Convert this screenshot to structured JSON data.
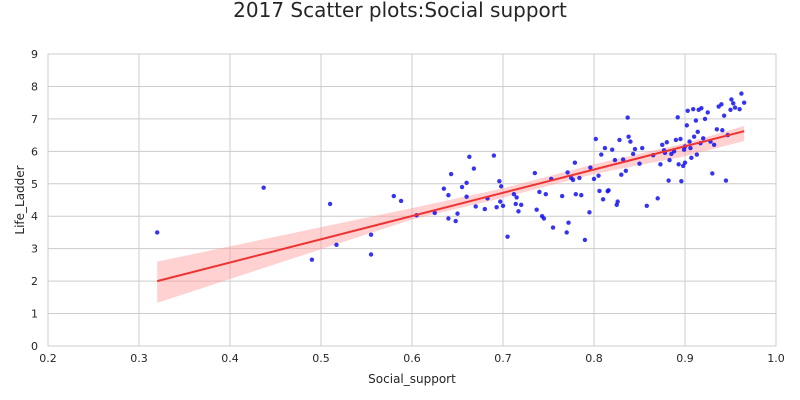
{
  "chart_data": {
    "type": "scatter",
    "title": "2017 Scatter plots:Social support",
    "xlabel": "Social_support",
    "ylabel": "Life_Ladder",
    "xlim": [
      0.2,
      1.0
    ],
    "ylim": [
      0,
      9
    ],
    "x_ticks": [
      "0.2",
      "0.3",
      "0.4",
      "0.5",
      "0.6",
      "0.7",
      "0.8",
      "0.9",
      "1.0"
    ],
    "y_ticks": [
      "0",
      "1",
      "2",
      "3",
      "4",
      "5",
      "6",
      "7",
      "8",
      "9"
    ],
    "grid": true,
    "point_color": "#1010f0",
    "fit_color": "#ee3333",
    "ci_color": "#ff9999",
    "points": [
      [
        0.32,
        3.5
      ],
      [
        0.437,
        4.88
      ],
      [
        0.49,
        2.66
      ],
      [
        0.51,
        4.38
      ],
      [
        0.517,
        3.12
      ],
      [
        0.555,
        2.82
      ],
      [
        0.555,
        3.43
      ],
      [
        0.58,
        4.62
      ],
      [
        0.588,
        4.47
      ],
      [
        0.605,
        4.03
      ],
      [
        0.625,
        4.1
      ],
      [
        0.635,
        4.85
      ],
      [
        0.64,
        4.65
      ],
      [
        0.64,
        3.93
      ],
      [
        0.643,
        5.3
      ],
      [
        0.648,
        3.85
      ],
      [
        0.65,
        4.08
      ],
      [
        0.655,
        4.9
      ],
      [
        0.66,
        5.03
      ],
      [
        0.66,
        4.6
      ],
      [
        0.663,
        5.83
      ],
      [
        0.668,
        5.47
      ],
      [
        0.67,
        4.3
      ],
      [
        0.68,
        4.22
      ],
      [
        0.683,
        4.55
      ],
      [
        0.69,
        5.87
      ],
      [
        0.693,
        4.28
      ],
      [
        0.696,
        5.08
      ],
      [
        0.697,
        4.45
      ],
      [
        0.698,
        4.92
      ],
      [
        0.7,
        4.32
      ],
      [
        0.705,
        3.37
      ],
      [
        0.712,
        4.68
      ],
      [
        0.714,
        4.38
      ],
      [
        0.715,
        4.58
      ],
      [
        0.717,
        4.15
      ],
      [
        0.72,
        4.35
      ],
      [
        0.735,
        5.33
      ],
      [
        0.737,
        4.2
      ],
      [
        0.74,
        4.75
      ],
      [
        0.743,
        4.0
      ],
      [
        0.745,
        3.93
      ],
      [
        0.747,
        4.68
      ],
      [
        0.753,
        5.15
      ],
      [
        0.755,
        3.65
      ],
      [
        0.765,
        4.62
      ],
      [
        0.77,
        3.5
      ],
      [
        0.771,
        5.35
      ],
      [
        0.772,
        3.8
      ],
      [
        0.775,
        5.18
      ],
      [
        0.777,
        5.12
      ],
      [
        0.779,
        5.65
      ],
      [
        0.78,
        4.68
      ],
      [
        0.784,
        5.18
      ],
      [
        0.786,
        4.65
      ],
      [
        0.79,
        3.27
      ],
      [
        0.795,
        4.12
      ],
      [
        0.796,
        5.5
      ],
      [
        0.8,
        5.15
      ],
      [
        0.802,
        6.38
      ],
      [
        0.805,
        5.25
      ],
      [
        0.806,
        4.78
      ],
      [
        0.808,
        5.9
      ],
      [
        0.81,
        4.52
      ],
      [
        0.812,
        6.1
      ],
      [
        0.815,
        4.77
      ],
      [
        0.816,
        4.8
      ],
      [
        0.82,
        6.05
      ],
      [
        0.823,
        5.73
      ],
      [
        0.825,
        4.35
      ],
      [
        0.826,
        4.45
      ],
      [
        0.828,
        6.35
      ],
      [
        0.83,
        5.28
      ],
      [
        0.832,
        5.75
      ],
      [
        0.835,
        5.4
      ],
      [
        0.837,
        7.04
      ],
      [
        0.838,
        6.45
      ],
      [
        0.84,
        6.3
      ],
      [
        0.843,
        5.92
      ],
      [
        0.845,
        6.07
      ],
      [
        0.85,
        5.62
      ],
      [
        0.853,
        6.1
      ],
      [
        0.858,
        4.32
      ],
      [
        0.865,
        5.88
      ],
      [
        0.87,
        4.55
      ],
      [
        0.873,
        5.6
      ],
      [
        0.875,
        6.2
      ],
      [
        0.877,
        6.03
      ],
      [
        0.878,
        5.95
      ],
      [
        0.88,
        6.28
      ],
      [
        0.882,
        5.1
      ],
      [
        0.883,
        5.73
      ],
      [
        0.885,
        5.92
      ],
      [
        0.888,
        6.0
      ],
      [
        0.89,
        6.35
      ],
      [
        0.892,
        7.05
      ],
      [
        0.893,
        5.6
      ],
      [
        0.895,
        6.38
      ],
      [
        0.896,
        5.08
      ],
      [
        0.898,
        5.55
      ],
      [
        0.899,
        6.05
      ],
      [
        0.9,
        6.15
      ],
      [
        0.9,
        5.65
      ],
      [
        0.902,
        6.8
      ],
      [
        0.903,
        7.25
      ],
      [
        0.905,
        6.3
      ],
      [
        0.906,
        6.1
      ],
      [
        0.907,
        5.8
      ],
      [
        0.909,
        7.3
      ],
      [
        0.91,
        6.45
      ],
      [
        0.912,
        6.95
      ],
      [
        0.913,
        5.9
      ],
      [
        0.914,
        6.6
      ],
      [
        0.915,
        7.28
      ],
      [
        0.917,
        6.25
      ],
      [
        0.918,
        7.33
      ],
      [
        0.92,
        6.4
      ],
      [
        0.922,
        7.0
      ],
      [
        0.925,
        7.2
      ],
      [
        0.928,
        6.3
      ],
      [
        0.93,
        5.32
      ],
      [
        0.932,
        6.2
      ],
      [
        0.935,
        6.68
      ],
      [
        0.937,
        7.38
      ],
      [
        0.94,
        7.45
      ],
      [
        0.941,
        6.65
      ],
      [
        0.943,
        7.1
      ],
      [
        0.945,
        5.1
      ],
      [
        0.947,
        6.5
      ],
      [
        0.95,
        7.28
      ],
      [
        0.951,
        7.6
      ],
      [
        0.953,
        7.48
      ],
      [
        0.955,
        7.35
      ],
      [
        0.96,
        7.3
      ],
      [
        0.962,
        7.78
      ],
      [
        0.965,
        7.5
      ]
    ],
    "regression": {
      "x": [
        0.32,
        0.965
      ],
      "y": [
        2.0,
        6.62
      ]
    },
    "confidence_band": {
      "x": [
        0.32,
        0.6,
        0.7,
        0.8,
        0.9,
        0.965
      ],
      "upper": [
        2.6,
        4.25,
        4.86,
        5.6,
        6.25,
        6.78
      ],
      "lower": [
        1.33,
        3.9,
        4.57,
        5.3,
        5.85,
        6.32
      ]
    }
  }
}
